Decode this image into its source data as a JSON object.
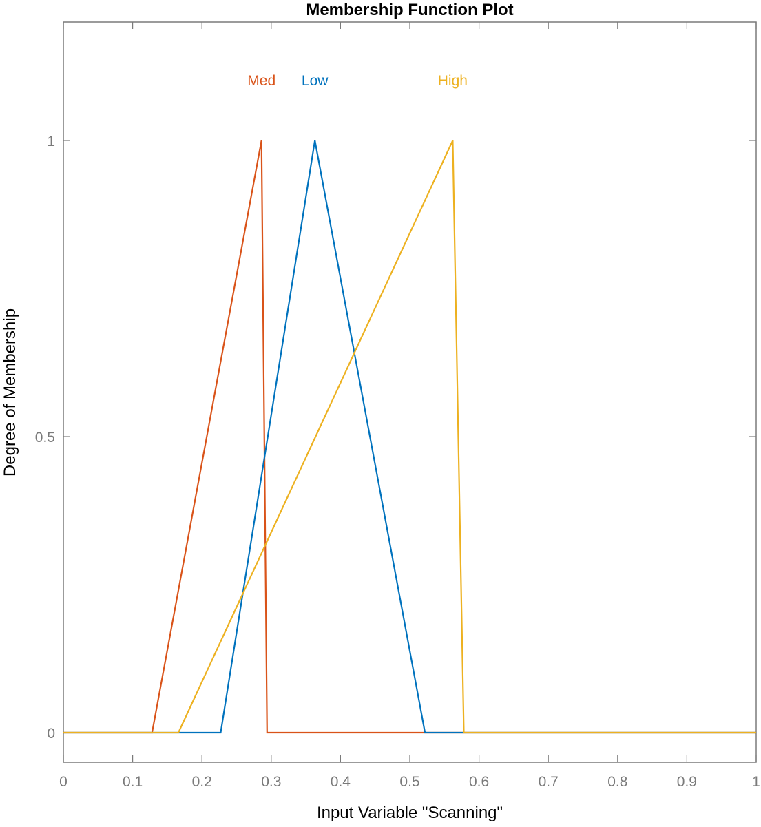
{
  "chart_data": {
    "type": "line",
    "title": "Membership Function Plot",
    "xlabel": "Input Variable \"Scanning\"",
    "ylabel": "Degree of Membership",
    "xlim": [
      0,
      1
    ],
    "ylim": [
      -0.05,
      1.2
    ],
    "xticks": [
      0,
      0.1,
      0.2,
      0.3,
      0.4,
      0.5,
      0.6,
      0.7,
      0.8,
      0.9,
      1
    ],
    "xtick_labels": [
      "0",
      "0.1",
      "0.2",
      "0.3",
      "0.4",
      "0.5",
      "0.6",
      "0.7",
      "0.8",
      "0.9",
      "1"
    ],
    "yticks": [
      0,
      0.5,
      1
    ],
    "ytick_labels": [
      "0",
      "0.5",
      "1"
    ],
    "grid": false,
    "series": [
      {
        "name": "Med",
        "color": "#d95319",
        "x": [
          0,
          0.128,
          0.286,
          0.294,
          1
        ],
        "y": [
          0,
          0,
          1,
          0,
          0
        ]
      },
      {
        "name": "Low",
        "color": "#0072bd",
        "x": [
          0,
          0.227,
          0.363,
          0.522,
          1
        ],
        "y": [
          0,
          0,
          1,
          0,
          0
        ]
      },
      {
        "name": "High",
        "color": "#edb120",
        "x": [
          0,
          0.166,
          0.562,
          0.578,
          1
        ],
        "y": [
          0,
          0,
          1,
          0,
          0
        ]
      }
    ],
    "annotations": [
      {
        "text": "Med",
        "series": "Med",
        "x": 0.286,
        "y": 1.1
      },
      {
        "text": "Low",
        "series": "Low",
        "x": 0.363,
        "y": 1.1
      },
      {
        "text": "High",
        "series": "High",
        "x": 0.562,
        "y": 1.1
      }
    ]
  }
}
